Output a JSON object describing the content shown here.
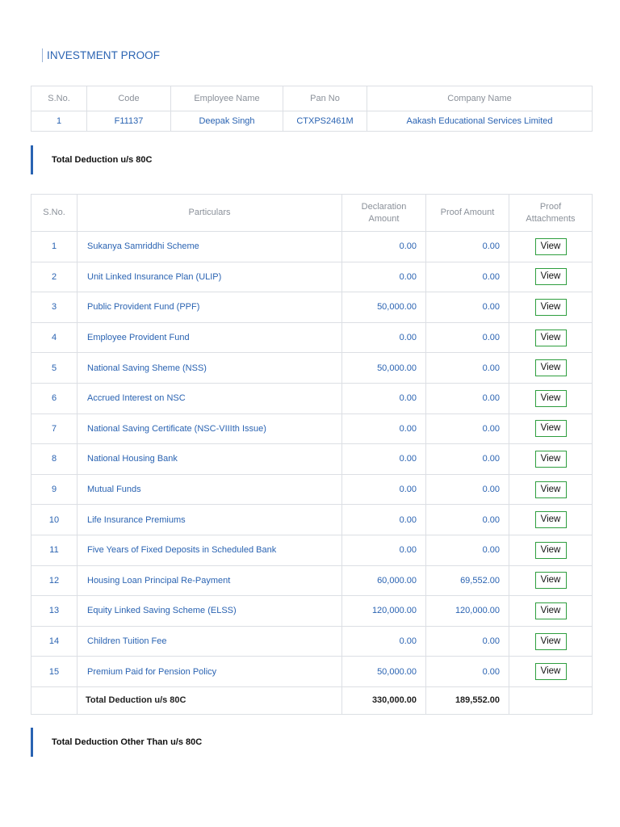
{
  "page": {
    "title": "INVESTMENT PROOF"
  },
  "employee_table": {
    "headers": [
      "S.No.",
      "Code",
      "Employee Name",
      "Pan No",
      "Company Name"
    ],
    "row": {
      "sno": "1",
      "code": "F11137",
      "name": "Deepak Singh",
      "pan": "CTXPS2461M",
      "company": "Aakash Educational Services Limited"
    }
  },
  "section_80c": {
    "title": "Total Deduction u/s 80C"
  },
  "investment_table": {
    "headers": {
      "sno": "S.No.",
      "particulars": "Particulars",
      "declaration": "Declaration Amount",
      "proof_amount": "Proof Amount",
      "attachments": "Proof Attachments"
    },
    "view_label": "View",
    "rows": [
      {
        "sno": "1",
        "particular": "Sukanya Samriddhi Scheme",
        "declaration": "0.00",
        "proof": "0.00"
      },
      {
        "sno": "2",
        "particular": "Unit Linked Insurance Plan (ULIP)",
        "declaration": "0.00",
        "proof": "0.00"
      },
      {
        "sno": "3",
        "particular": "Public Provident Fund (PPF)",
        "declaration": "50,000.00",
        "proof": "0.00"
      },
      {
        "sno": "4",
        "particular": "Employee Provident Fund",
        "declaration": "0.00",
        "proof": "0.00"
      },
      {
        "sno": "5",
        "particular": "National Saving Sheme (NSS)",
        "declaration": "50,000.00",
        "proof": "0.00"
      },
      {
        "sno": "6",
        "particular": "Accrued Interest on NSC",
        "declaration": "0.00",
        "proof": "0.00"
      },
      {
        "sno": "7",
        "particular": "National Saving Certificate (NSC-VIIIth Issue)",
        "declaration": "0.00",
        "proof": "0.00"
      },
      {
        "sno": "8",
        "particular": "National Housing Bank",
        "declaration": "0.00",
        "proof": "0.00"
      },
      {
        "sno": "9",
        "particular": "Mutual Funds",
        "declaration": "0.00",
        "proof": "0.00"
      },
      {
        "sno": "10",
        "particular": "Life Insurance Premiums",
        "declaration": "0.00",
        "proof": "0.00"
      },
      {
        "sno": "11",
        "particular": "Five Years of Fixed Deposits in Scheduled Bank",
        "declaration": "0.00",
        "proof": "0.00"
      },
      {
        "sno": "12",
        "particular": "Housing Loan Principal Re-Payment",
        "declaration": "60,000.00",
        "proof": "69,552.00"
      },
      {
        "sno": "13",
        "particular": "Equity Linked Saving Scheme (ELSS)",
        "declaration": "120,000.00",
        "proof": "120,000.00"
      },
      {
        "sno": "14",
        "particular": "Children Tuition Fee",
        "declaration": "0.00",
        "proof": "0.00"
      },
      {
        "sno": "15",
        "particular": "Premium Paid for Pension Policy",
        "declaration": "50,000.00",
        "proof": "0.00"
      }
    ],
    "total": {
      "label": "Total Deduction u/s 80C",
      "declaration": "330,000.00",
      "proof": "189,552.00"
    }
  },
  "section_other": {
    "title": "Total Deduction Other Than u/s 80C"
  }
}
